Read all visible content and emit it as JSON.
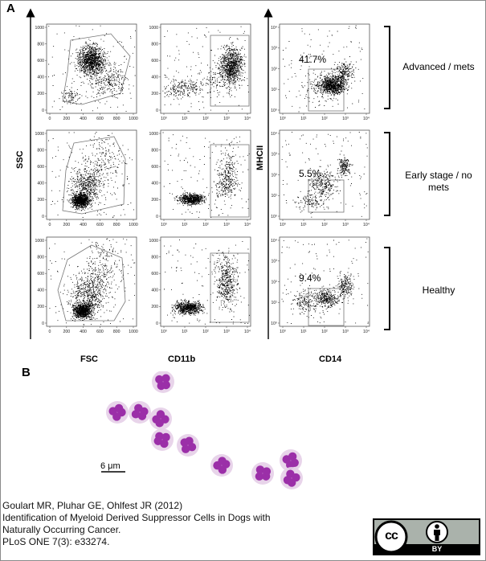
{
  "figure": {
    "panelA": {
      "letter": "A",
      "y_label_scatter": "SSC",
      "y_label_markers": "MHCII",
      "x_labels": [
        "FSC",
        "CD11b",
        "CD14"
      ],
      "linear_ticks": [
        "0",
        "200",
        "400",
        "600",
        "800",
        "1000"
      ],
      "log_ticks": [
        "10⁰",
        "10¹",
        "10²",
        "10³",
        "10⁴"
      ],
      "groups": [
        {
          "label": "Advanced / mets",
          "percent": "41.7%"
        },
        {
          "label": "Early stage / no mets",
          "percent": "5.5%"
        },
        {
          "label": "Healthy",
          "percent": "9.4%"
        }
      ]
    },
    "panelB": {
      "letter": "B",
      "scale_bar": "6 μm"
    }
  },
  "citation": {
    "line1": "Goulart MR, Pluhar GE, Ohlfest JR (2012)",
    "line2": "Identification of Myeloid Derived Suppressor Cells in Dogs with",
    "line3": "Naturally Occurring Cancer.",
    "line4": "PLoS ONE 7(3): e33274."
  },
  "license": {
    "cc": "cc",
    "by": "BY"
  }
}
